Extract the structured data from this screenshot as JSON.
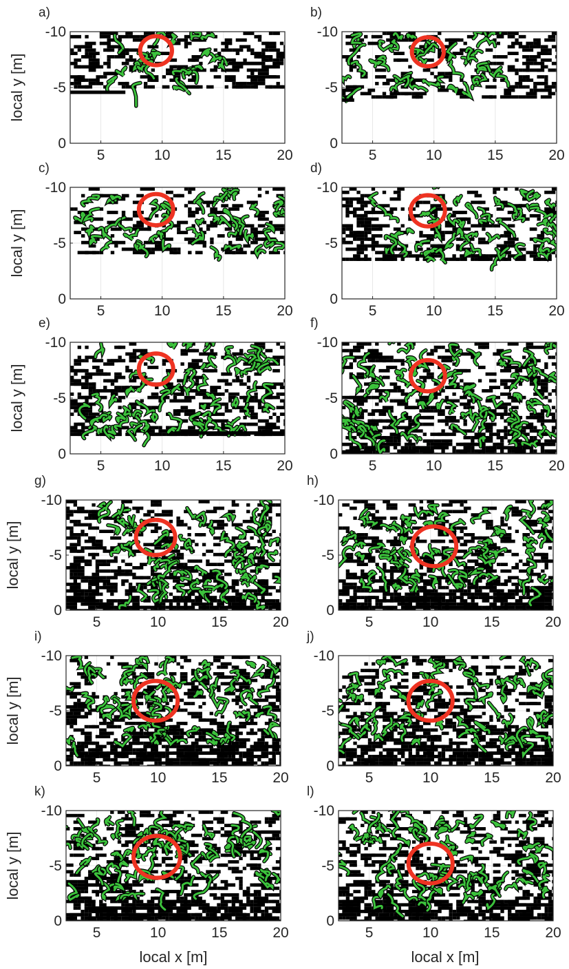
{
  "figure": {
    "x_label": "local x [m]",
    "y_label": "local y [m]"
  },
  "colors": {
    "object": "#000000",
    "highlight": "#3cc23c",
    "circle": "#ee3322",
    "axis": "#262626",
    "grid": "#e6e6e6"
  },
  "chart_data": [
    {
      "panel": "a)",
      "type": "heatmap",
      "xlim": [
        2.5,
        20
      ],
      "ylim": [
        -10,
        0
      ],
      "y_reversed": true,
      "grid": true,
      "x_ticks": [
        5,
        10,
        15,
        20
      ],
      "x_tick_labels": [
        "5",
        "10",
        "15",
        "20"
      ],
      "y_ticks": [
        -10,
        -5,
        0
      ],
      "y_tick_labels": [
        "-10",
        "-5",
        "0"
      ],
      "coverage_y_min": -5,
      "ledge_y": -4.6,
      "ledge_x": [
        2.5,
        7
      ],
      "green_band": [
        -10,
        -5
      ],
      "green_x": [
        5.5,
        15
      ],
      "dark_bottom": 0,
      "circle": {
        "x": 9.5,
        "y": -8.3,
        "r": 1.3
      }
    },
    {
      "panel": "b)",
      "type": "heatmap",
      "xlim": [
        2.5,
        20
      ],
      "ylim": [
        -10,
        0
      ],
      "y_reversed": true,
      "grid": true,
      "x_ticks": [
        5,
        10,
        15,
        20
      ],
      "x_tick_labels": [
        "5",
        "10",
        "15",
        "20"
      ],
      "y_ticks": [
        -10,
        -5,
        0
      ],
      "y_tick_labels": [
        "-10",
        "-5",
        "0"
      ],
      "coverage_y_min": -4,
      "ledge_y": -3.9,
      "ledge_x": [
        2.5,
        3.5
      ],
      "green_band": [
        -10,
        -4.5
      ],
      "green_x": [
        3,
        16
      ],
      "dark_bottom": 0,
      "circle": {
        "x": 9.5,
        "y": -8.2,
        "r": 1.3
      }
    },
    {
      "panel": "c)",
      "type": "heatmap",
      "xlim": [
        2.5,
        20
      ],
      "ylim": [
        -10,
        0
      ],
      "y_reversed": true,
      "grid": true,
      "x_ticks": [
        5,
        10,
        15,
        20
      ],
      "x_tick_labels": [
        "5",
        "10",
        "15",
        "20"
      ],
      "y_ticks": [
        -10,
        -5,
        0
      ],
      "y_tick_labels": [
        "-10",
        "-5",
        "0"
      ],
      "coverage_y_min": -4,
      "green_band": [
        -10,
        -4.5
      ],
      "green_x": [
        2.5,
        20
      ],
      "dark_bottom": 0,
      "circle": {
        "x": 9.5,
        "y": -8.0,
        "r": 1.4
      }
    },
    {
      "panel": "d)",
      "type": "heatmap",
      "xlim": [
        2.5,
        20
      ],
      "ylim": [
        -10,
        0
      ],
      "y_reversed": true,
      "grid": true,
      "x_ticks": [
        5,
        10,
        15,
        20
      ],
      "x_tick_labels": [
        "5",
        "10",
        "15",
        "20"
      ],
      "y_ticks": [
        -10,
        -5,
        0
      ],
      "y_tick_labels": [
        "-10",
        "-5",
        "0"
      ],
      "coverage_y_min": -3.5,
      "green_band": [
        -10,
        -4
      ],
      "green_x": [
        5,
        20
      ],
      "dark_bottom": 0,
      "circle": {
        "x": 9.5,
        "y": -7.9,
        "r": 1.4
      }
    },
    {
      "panel": "e)",
      "type": "heatmap",
      "xlim": [
        2.5,
        20
      ],
      "ylim": [
        -10,
        0
      ],
      "y_reversed": true,
      "grid": true,
      "x_ticks": [
        5,
        10,
        15,
        20
      ],
      "x_tick_labels": [
        "5",
        "10",
        "15",
        "20"
      ],
      "y_ticks": [
        -10,
        -5,
        0
      ],
      "y_tick_labels": [
        "-10",
        "-5",
        "0"
      ],
      "coverage_y_min": -1.6,
      "ledge_y": -1.9,
      "ledge_x": [
        11,
        20
      ],
      "green_band": [
        -10,
        -2
      ],
      "green_x": [
        4,
        20
      ],
      "dark_bottom": 0.35,
      "circle": {
        "x": 9.5,
        "y": -7.6,
        "r": 1.4
      }
    },
    {
      "panel": "f)",
      "type": "heatmap",
      "xlim": [
        2.5,
        20
      ],
      "ylim": [
        -10,
        0
      ],
      "y_reversed": true,
      "grid": true,
      "x_ticks": [
        5,
        10,
        15,
        20
      ],
      "x_tick_labels": [
        "5",
        "10",
        "15",
        "20"
      ],
      "y_ticks": [
        -10,
        -5,
        0
      ],
      "y_tick_labels": [
        "-10",
        "-5",
        "0"
      ],
      "coverage_y_min": 0,
      "ledge_y": -0.2,
      "ledge_x": [
        2.5,
        5
      ],
      "green_band": [
        -10,
        -1
      ],
      "green_x": [
        2.5,
        20
      ],
      "dark_bottom": 0.5,
      "circle": {
        "x": 9.5,
        "y": -7.0,
        "r": 1.4
      }
    },
    {
      "panel": "g)",
      "type": "heatmap",
      "xlim": [
        2.5,
        20
      ],
      "ylim": [
        -10,
        0
      ],
      "y_reversed": true,
      "grid": true,
      "x_ticks": [
        5,
        10,
        15,
        20
      ],
      "x_tick_labels": [
        "5",
        "10",
        "15",
        "20"
      ],
      "y_ticks": [
        -10,
        -5,
        0
      ],
      "y_tick_labels": [
        "-10",
        "-5",
        "0"
      ],
      "coverage_y_min": 0,
      "green_band": [
        -10,
        -1
      ],
      "green_x": [
        5,
        20
      ],
      "dark_bottom": 0.6,
      "circle": {
        "x": 9.8,
        "y": -6.6,
        "r": 1.6
      }
    },
    {
      "panel": "h)",
      "type": "heatmap",
      "xlim": [
        2.5,
        20
      ],
      "ylim": [
        -10,
        0
      ],
      "y_reversed": true,
      "grid": true,
      "x_ticks": [
        5,
        10,
        15,
        20
      ],
      "x_tick_labels": [
        "5",
        "10",
        "15",
        "20"
      ],
      "y_ticks": [
        -10,
        -5,
        0
      ],
      "y_tick_labels": [
        "-10",
        "-5",
        "0"
      ],
      "coverage_y_min": 0,
      "green_band": [
        -10,
        -2
      ],
      "green_x": [
        2.5,
        20
      ],
      "dark_bottom": 0.6,
      "circle": {
        "x": 10.3,
        "y": -5.8,
        "r": 1.8
      }
    },
    {
      "panel": "i)",
      "type": "heatmap",
      "xlim": [
        2.5,
        20
      ],
      "ylim": [
        -10,
        0
      ],
      "y_reversed": true,
      "grid": true,
      "x_ticks": [
        5,
        10,
        15,
        20
      ],
      "x_tick_labels": [
        "5",
        "10",
        "15",
        "20"
      ],
      "y_ticks": [
        -10,
        -5,
        0
      ],
      "y_tick_labels": [
        "-10",
        "-5",
        "0"
      ],
      "coverage_y_min": 0,
      "green_band": [
        -10,
        -2
      ],
      "green_x": [
        2.5,
        20
      ],
      "dark_bottom": 0.65,
      "circle": {
        "x": 9.8,
        "y": -5.9,
        "r": 1.8
      }
    },
    {
      "panel": "j)",
      "type": "heatmap",
      "xlim": [
        2.5,
        20
      ],
      "ylim": [
        -10,
        0
      ],
      "y_reversed": true,
      "grid": true,
      "x_ticks": [
        5,
        10,
        15,
        20
      ],
      "x_tick_labels": [
        "5",
        "10",
        "15",
        "20"
      ],
      "y_ticks": [
        -10,
        -5,
        0
      ],
      "y_tick_labels": [
        "-10",
        "-5",
        "0"
      ],
      "coverage_y_min": 0,
      "green_band": [
        -10,
        -2
      ],
      "green_x": [
        2.5,
        20
      ],
      "dark_bottom": 0.65,
      "circle": {
        "x": 10.0,
        "y": -5.9,
        "r": 1.8
      }
    },
    {
      "panel": "k)",
      "type": "heatmap",
      "xlim": [
        2.5,
        20
      ],
      "ylim": [
        -10,
        0
      ],
      "y_reversed": true,
      "grid": true,
      "x_ticks": [
        5,
        10,
        15,
        20
      ],
      "x_tick_labels": [
        "5",
        "10",
        "15",
        "20"
      ],
      "y_ticks": [
        -10,
        -5,
        0
      ],
      "y_tick_labels": [
        "-10",
        "-5",
        "0"
      ],
      "coverage_y_min": 0,
      "green_band": [
        -10,
        -2
      ],
      "green_x": [
        2.5,
        20
      ],
      "dark_bottom": 0.65,
      "circle": {
        "x": 9.9,
        "y": -5.8,
        "r": 1.9
      }
    },
    {
      "panel": "l)",
      "type": "heatmap",
      "xlim": [
        2.5,
        20
      ],
      "ylim": [
        -10,
        0
      ],
      "y_reversed": true,
      "grid": true,
      "x_ticks": [
        5,
        10,
        15,
        20
      ],
      "x_tick_labels": [
        "5",
        "10",
        "15",
        "20"
      ],
      "y_ticks": [
        -10,
        -5,
        0
      ],
      "y_tick_labels": [
        "-10",
        "-5",
        "0"
      ],
      "coverage_y_min": 0,
      "green_band": [
        -10,
        -2
      ],
      "green_x": [
        2.5,
        20
      ],
      "dark_bottom": 0.65,
      "circle": {
        "x": 10.0,
        "y": -5.2,
        "r": 1.8
      }
    }
  ]
}
